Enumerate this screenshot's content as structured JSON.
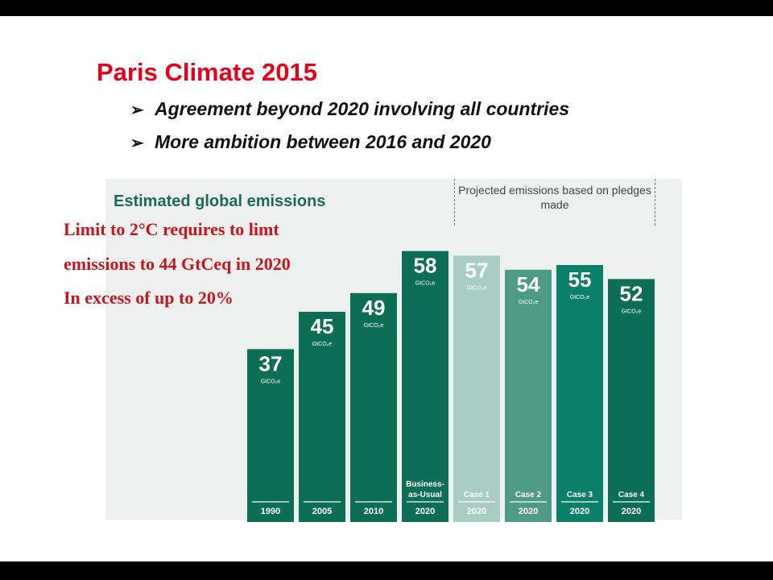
{
  "slide": {
    "title": "Paris Climate 2015",
    "bullets": [
      "Agreement beyond 2020 involving all countries",
      "More ambition between 2016 and 2020"
    ],
    "bullet_marker": "➢",
    "annotation": [
      "Limit to 2°C requires to limt",
      "emissions  to 44 GtCeq in 2020",
      "In excess of up to 20%"
    ]
  },
  "colors": {
    "title": "#e3001b",
    "bar_dark": "#0d6e56",
    "bar_light": "#a9cdc2",
    "bar_mid": "#4f9a84",
    "bar_teal": "#0b7f68",
    "annotation": "#c8141a"
  },
  "chart_data": {
    "type": "bar",
    "title": "Estimated global emissions",
    "projection_note": "Projected emissions based on pledges made",
    "unit": "GtCO₂e",
    "ylim": [
      0,
      60
    ],
    "bars": [
      {
        "year": "1990",
        "sub": "",
        "value": 37,
        "color": "#0d6e56"
      },
      {
        "year": "2005",
        "sub": "",
        "value": 45,
        "color": "#0d6e56"
      },
      {
        "year": "2010",
        "sub": "",
        "value": 49,
        "color": "#0d6e56"
      },
      {
        "year": "2020",
        "sub": "Business-\nas-Usual",
        "value": 58,
        "color": "#0d6e56"
      },
      {
        "year": "2020",
        "sub": "Case 1",
        "value": 57,
        "color": "#a9cdc2"
      },
      {
        "year": "2020",
        "sub": "Case 2",
        "value": 54,
        "color": "#4f9a84"
      },
      {
        "year": "2020",
        "sub": "Case 3",
        "value": 55,
        "color": "#0b7f68"
      },
      {
        "year": "2020",
        "sub": "Case 4",
        "value": 52,
        "color": "#0d6e56"
      }
    ]
  }
}
